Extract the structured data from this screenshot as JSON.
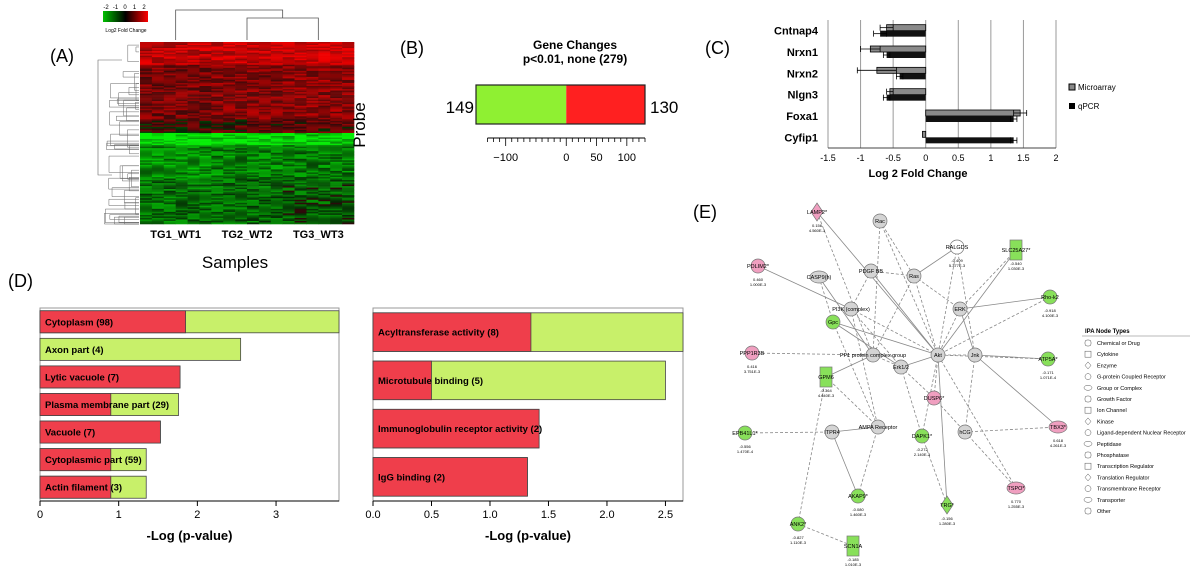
{
  "panel_labels": {
    "a": "(A)",
    "b": "(B)",
    "c": "(C)",
    "d": "(D)",
    "e": "(E)"
  },
  "colors": {
    "up": "#e8363d",
    "down": "#8ff032",
    "pale": "#c8f06a",
    "bar_red": "#ef3e4b",
    "node_pink": "#f09fc0",
    "node_green": "#88e05a",
    "node_grey": "#d4d4d4"
  },
  "chart_data": [
    {
      "type": "heatmap",
      "legend_title": "Log2 Fold Change",
      "legend_ticks": [
        "-2",
        "-1",
        "0",
        "1",
        "2"
      ],
      "columns": [
        "TG1_WT1",
        "TG2_WT2",
        "TG3_WT3"
      ],
      "xlabel": "Samples",
      "ylabel": "Probe"
    },
    {
      "type": "bar",
      "title": "Gene Changes",
      "subtitle": "p<0.01, none (279)",
      "down_count": 149,
      "up_count": 130,
      "left_label": "149",
      "right_label": "130",
      "xlim": [
        -149,
        130
      ],
      "xticks": [
        -100,
        0,
        50,
        100
      ],
      "xtick_labels": [
        "−100",
        "0",
        "50",
        "100"
      ]
    },
    {
      "type": "bar",
      "orientation": "horizontal",
      "categories": [
        "Cntnap4",
        "Nrxn1",
        "Nrxn2",
        "Nlgn3",
        "Foxa1",
        "Cyfip1"
      ],
      "series": [
        {
          "name": "Microarray",
          "values": [
            -0.6,
            -0.85,
            -0.75,
            -0.55,
            1.45,
            -0.05
          ],
          "errors": [
            0.1,
            0.15,
            0.3,
            0.05,
            0.1,
            0.0
          ]
        },
        {
          "name": "qPCR",
          "values": [
            -0.7,
            -0.6,
            -0.4,
            -0.6,
            1.35,
            1.35
          ],
          "errors": [
            0.1,
            0.05,
            0.05,
            0.05,
            0.05,
            0.05
          ]
        }
      ],
      "xlim": [
        -1.5,
        2
      ],
      "xticks": [
        "-1.5",
        "-1",
        "-0.5",
        "0",
        "0.5",
        "1",
        "1.5",
        "2"
      ],
      "xlabel": "Log 2 Fold Change"
    },
    {
      "type": "bar",
      "orientation": "horizontal",
      "categories": [
        "Cytoplasm (98)",
        "Axon part (4)",
        "Lytic vacuole (7)",
        "Plasma membrane part (29)",
        "Vacuole (7)",
        "Cytoplasmic part (59)",
        "Actin filament (3)"
      ],
      "values": [
        3.8,
        2.55,
        1.78,
        1.76,
        1.53,
        1.35,
        1.35
      ],
      "red_portion": [
        1.85,
        0,
        1.78,
        0.9,
        1.53,
        0.9,
        0.9
      ],
      "xlim": [
        0,
        3.8
      ],
      "xticks": [
        "0",
        "1",
        "2",
        "3"
      ],
      "xlabel": "-Log (p-value)"
    },
    {
      "type": "bar",
      "orientation": "horizontal",
      "categories": [
        "Acyltransferase activity (8)",
        "Microtubule binding (5)",
        "Immunoglobulin receptor activity (2)",
        "IgG binding (2)"
      ],
      "values": [
        2.65,
        2.5,
        1.42,
        1.32
      ],
      "red_portion": [
        1.35,
        0.5,
        1.42,
        1.32
      ],
      "xlim": [
        0,
        2.65
      ],
      "xticks": [
        "0.0",
        "0.5",
        "1.0",
        "1.5",
        "2.0",
        "2.5"
      ],
      "xlabel": "-Log (p-value)"
    }
  ],
  "network": {
    "nodes": [
      {
        "label": "LAMP2*",
        "v1": "0.156",
        "v2": "4.560E-3",
        "color": "pink",
        "shape": "diamond"
      },
      {
        "label": "Rac",
        "color": "grey",
        "shape": "circle"
      },
      {
        "label": "RALGDS",
        "v1": "-0.409",
        "v2": "5.377E-3",
        "color": "white",
        "shape": "circle"
      },
      {
        "label": "SLC25A27*",
        "v1": "-0.540",
        "v2": "1.030E-3",
        "color": "green",
        "shape": "rect"
      },
      {
        "label": "PDLIM2*",
        "v1": "0.460",
        "v2": "1.000E-3",
        "color": "pink",
        "shape": "circle"
      },
      {
        "label": "CASP9(h)",
        "color": "grey",
        "shape": "ellipse"
      },
      {
        "label": "PDGF BB",
        "color": "grey",
        "shape": "circle"
      },
      {
        "label": "Ras",
        "color": "grey",
        "shape": "circle"
      },
      {
        "label": "PI3K (complex)",
        "color": "grey",
        "shape": "circle"
      },
      {
        "label": "Gpc",
        "color": "green",
        "shape": "circle"
      },
      {
        "label": "ERK",
        "color": "grey",
        "shape": "circle"
      },
      {
        "label": "Rho-k2",
        "v1": "-0.918",
        "v2": "4.100E-3",
        "color": "green",
        "shape": "circle"
      },
      {
        "label": "Akt",
        "color": "grey",
        "shape": "circle"
      },
      {
        "label": "PP1 protein complex group",
        "color": "grey",
        "shape": "circle"
      },
      {
        "label": "Jnk",
        "color": "grey",
        "shape": "circle"
      },
      {
        "label": "PPP1R3B",
        "v1": "0.416",
        "v2": "3.751E-3",
        "color": "pink",
        "shape": "circle"
      },
      {
        "label": "ATP5A*",
        "v1": "-0.171",
        "v2": "1.071E-4",
        "color": "green",
        "shape": "circle"
      },
      {
        "label": "GPM6",
        "v1": "-0.364",
        "v2": "4.640E-3",
        "color": "green",
        "shape": "rect"
      },
      {
        "label": "Erk1/2",
        "color": "grey",
        "shape": "circle"
      },
      {
        "label": "DUSP6*",
        "color": "pink",
        "shape": "circle"
      },
      {
        "label": "AMPA Receptor",
        "color": "grey",
        "shape": "circle"
      },
      {
        "label": "EPB41L1*",
        "v1": "-0.556",
        "v2": "1.470E-4",
        "color": "green",
        "shape": "circle"
      },
      {
        "label": "ITPR4",
        "color": "grey",
        "shape": "circle"
      },
      {
        "label": "DAPK1*",
        "v1": "-0.272",
        "v2": "2.140E-3",
        "color": "green",
        "shape": "circle"
      },
      {
        "label": "hCG",
        "color": "grey",
        "shape": "circle"
      },
      {
        "label": "TBX3*",
        "v1": "0.618",
        "v2": "4.261E-3",
        "color": "pink",
        "shape": "ellipse"
      },
      {
        "label": "AKAP9*",
        "v1": "-0.080",
        "v2": "1.460E-3",
        "color": "green",
        "shape": "circle"
      },
      {
        "label": "TRG*",
        "v1": "-0.156",
        "v2": "1.280E-3",
        "color": "green",
        "shape": "diamond"
      },
      {
        "label": "TSPO*",
        "v1": "0.770",
        "v2": "1.255E-3",
        "color": "pink",
        "shape": "ellipse"
      },
      {
        "label": "ANK2*",
        "v1": "-0.827",
        "v2": "1.110E-3",
        "color": "green",
        "shape": "circle"
      },
      {
        "label": "SCN1A",
        "v1": "-0.185",
        "v2": "1.010E-3",
        "color": "green",
        "shape": "rect"
      }
    ],
    "legend_title": "IPA Node Types",
    "legend_items": [
      "Chemical or Drug",
      "Cytokine",
      "Enzyme",
      "G-protein Coupled Receptor",
      "Group or Complex",
      "Growth Factor",
      "Ion Channel",
      "Kinase",
      "Ligand-dependent Nuclear Receptor",
      "Peptidase",
      "Phosphatase",
      "Transcription Regulator",
      "Translation Regulator",
      "Transmembrane Receptor",
      "Transporter",
      "Other"
    ]
  }
}
